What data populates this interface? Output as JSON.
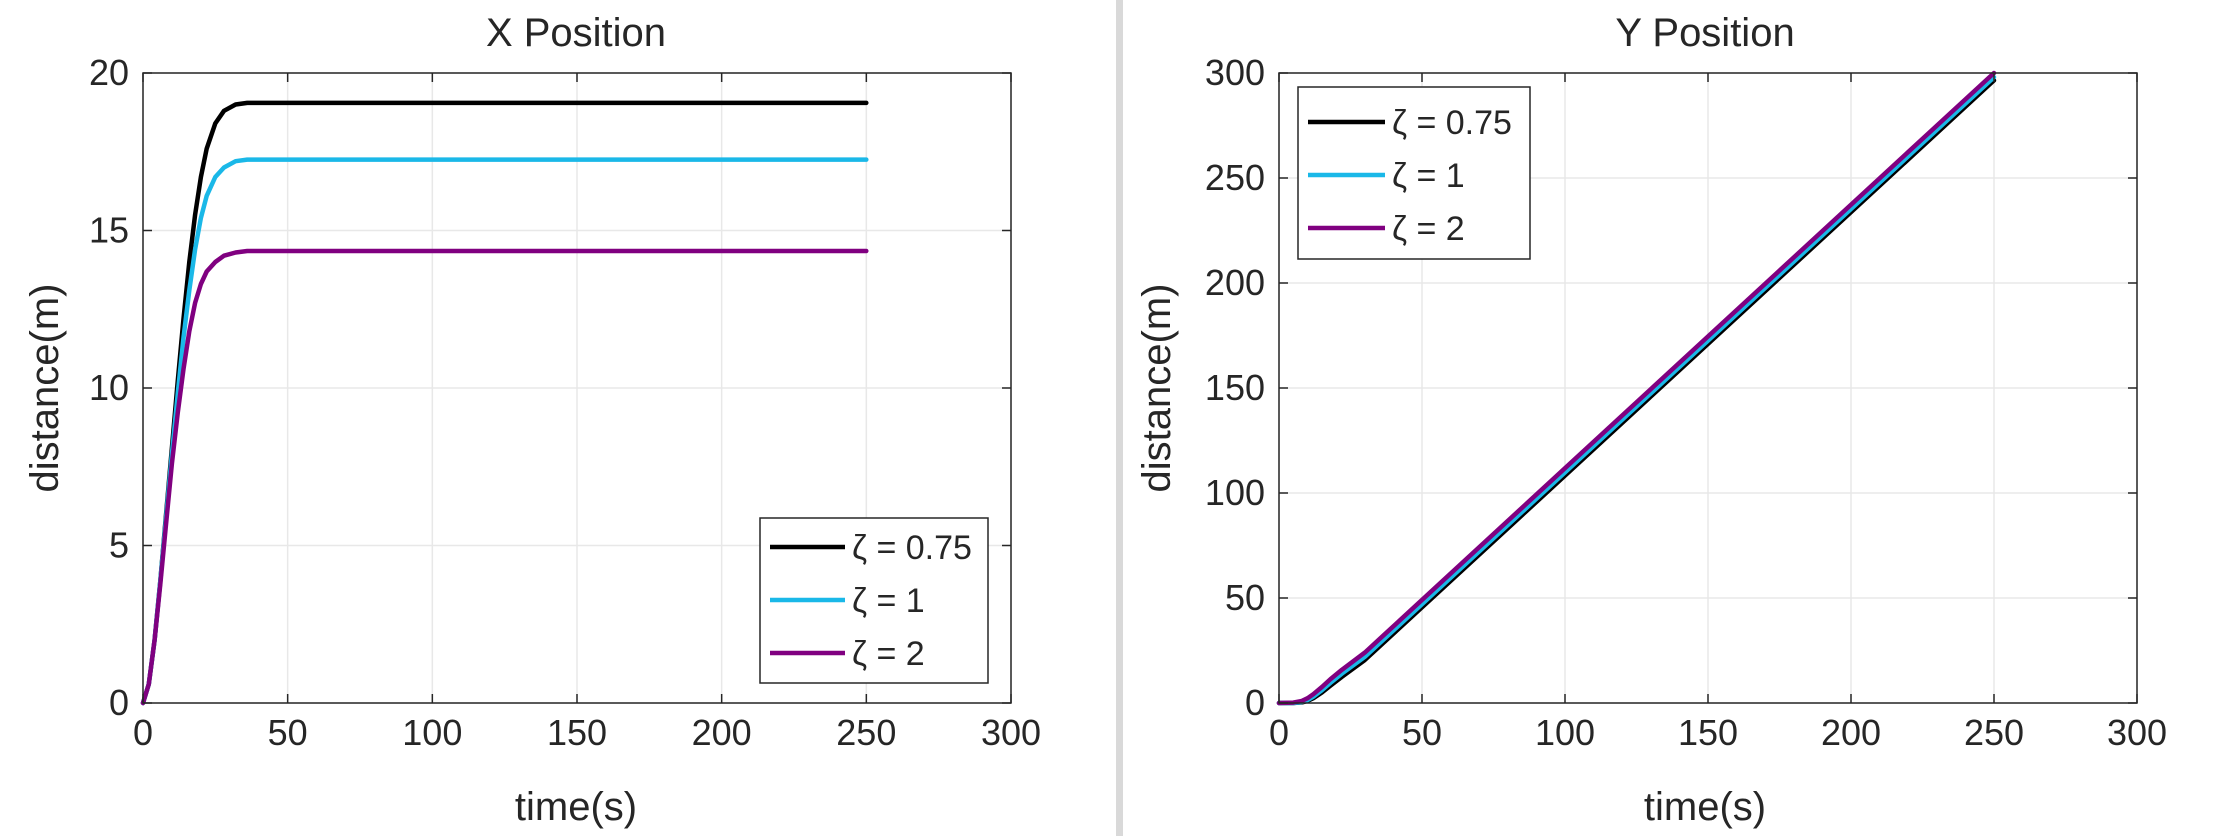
{
  "colors": {
    "series_0_75": "#000000",
    "series_1": "#1ab8e8",
    "series_2": "#800080",
    "axes": "#262626",
    "grid": "#e8e8e8",
    "divider": "#d9d9d9"
  },
  "chart_data": [
    {
      "type": "line",
      "title": "X Position",
      "xlabel": "time(s)",
      "ylabel": "distance(m)",
      "xlim": [
        0,
        300
      ],
      "ylim": [
        0,
        20
      ],
      "xticks": [
        0,
        50,
        100,
        150,
        200,
        250,
        300
      ],
      "yticks": [
        0,
        5,
        10,
        15,
        20
      ],
      "grid": true,
      "legend_position": "bottom-right",
      "series": [
        {
          "name": "ζ = 0.75",
          "color": "#000000",
          "x": [
            0,
            2,
            4,
            6,
            8,
            10,
            12,
            14,
            16,
            18,
            20,
            22,
            25,
            28,
            32,
            36,
            40,
            50,
            250
          ],
          "y": [
            0,
            0.6,
            2.0,
            3.9,
            6.0,
            8.1,
            10.2,
            12.2,
            14.0,
            15.5,
            16.7,
            17.6,
            18.4,
            18.8,
            19.0,
            19.05,
            19.05,
            19.05,
            19.05
          ]
        },
        {
          "name": "ζ = 1",
          "color": "#1ab8e8",
          "x": [
            0,
            2,
            4,
            6,
            8,
            10,
            12,
            14,
            16,
            18,
            20,
            22,
            25,
            28,
            32,
            36,
            40,
            50,
            250
          ],
          "y": [
            0,
            0.6,
            2.0,
            3.9,
            5.9,
            7.9,
            9.8,
            11.6,
            13.1,
            14.4,
            15.4,
            16.1,
            16.7,
            17.0,
            17.2,
            17.25,
            17.25,
            17.25,
            17.25
          ]
        },
        {
          "name": "ζ = 2",
          "color": "#800080",
          "x": [
            0,
            2,
            4,
            6,
            8,
            10,
            12,
            14,
            16,
            18,
            20,
            22,
            25,
            28,
            32,
            36,
            40,
            50,
            250
          ],
          "y": [
            0,
            0.6,
            2.0,
            3.8,
            5.7,
            7.6,
            9.2,
            10.6,
            11.8,
            12.7,
            13.3,
            13.7,
            14.0,
            14.2,
            14.3,
            14.35,
            14.35,
            14.35,
            14.35
          ]
        }
      ]
    },
    {
      "type": "line",
      "title": "Y Position",
      "xlabel": "time(s)",
      "ylabel": "distance(m)",
      "xlim": [
        0,
        300
      ],
      "ylim": [
        0,
        300
      ],
      "xticks": [
        0,
        50,
        100,
        150,
        200,
        250,
        300
      ],
      "yticks": [
        0,
        50,
        100,
        150,
        200,
        250,
        300
      ],
      "grid": true,
      "legend_position": "top-left",
      "series": [
        {
          "name": "ζ = 0.75",
          "color": "#000000",
          "x": [
            0,
            5,
            8,
            10,
            12,
            15,
            18,
            22,
            30,
            250
          ],
          "y": [
            0,
            0,
            0.3,
            1.0,
            2.3,
            5.0,
            8.3,
            12.5,
            20.5,
            296.5
          ]
        },
        {
          "name": "ζ = 1",
          "color": "#1ab8e8",
          "x": [
            0,
            5,
            8,
            10,
            12,
            15,
            18,
            22,
            30,
            250
          ],
          "y": [
            0,
            0,
            0.5,
            1.4,
            3.0,
            6.1,
            9.6,
            14.0,
            22.0,
            298.0
          ]
        },
        {
          "name": "ζ = 2",
          "color": "#800080",
          "x": [
            0,
            5,
            8,
            10,
            12,
            15,
            18,
            22,
            30,
            250
          ],
          "y": [
            0,
            0.2,
            1.0,
            2.3,
            4.2,
            7.6,
            11.4,
            15.8,
            24.0,
            300.0
          ]
        }
      ]
    }
  ]
}
